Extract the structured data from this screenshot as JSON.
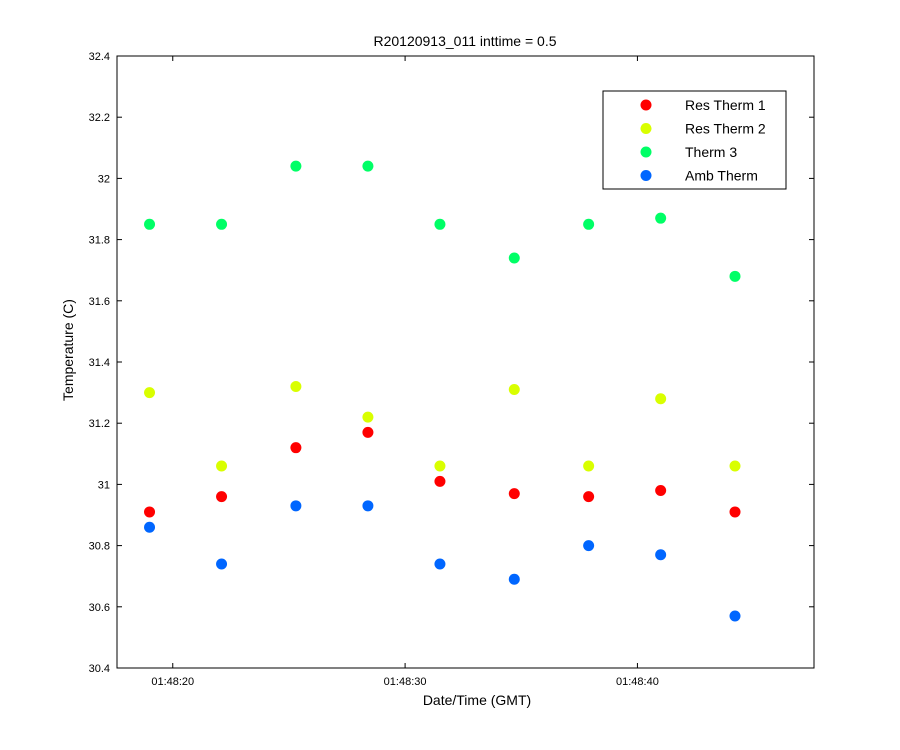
{
  "chart_data": {
    "type": "scatter",
    "title": "R20120913_011 inttime = 0.5",
    "xlabel": "Date/Time (GMT)",
    "ylabel": "Temperature (C)",
    "x_unit": "time",
    "x": [
      "01:48:19.0",
      "01:48:22.1",
      "01:48:25.3",
      "01:48:28.4",
      "01:48:31.5",
      "01:48:34.7",
      "01:48:37.9",
      "01:48:41.0",
      "01:48:44.2"
    ],
    "xlim": [
      "01:48:17.6",
      "01:48:47.6"
    ],
    "xticks": [
      "01:48:20",
      "01:48:30",
      "01:48:40"
    ],
    "ylim": [
      30.4,
      32.4
    ],
    "yticks": [
      "30.4",
      "30.6",
      "30.8",
      "31",
      "31.2",
      "31.4",
      "31.6",
      "31.8",
      "32",
      "32.2",
      "32.4"
    ],
    "grid": false,
    "legend_position": "top-right",
    "series": [
      {
        "name": "Res Therm 1",
        "color": "#ff0000",
        "values": [
          30.91,
          30.96,
          31.12,
          31.17,
          31.01,
          30.97,
          30.96,
          30.98,
          30.91
        ]
      },
      {
        "name": "Res Therm 2",
        "color": "#d9ff00",
        "values": [
          31.3,
          31.06,
          31.32,
          31.22,
          31.06,
          31.31,
          31.06,
          31.28,
          31.06
        ]
      },
      {
        "name": "Therm 3",
        "color": "#00ff66",
        "values": [
          31.85,
          31.85,
          32.04,
          32.04,
          31.85,
          31.74,
          31.85,
          31.87,
          31.68
        ]
      },
      {
        "name": "Amb Therm",
        "color": "#0066ff",
        "values": [
          30.86,
          30.74,
          30.93,
          30.93,
          30.74,
          30.69,
          30.8,
          30.77,
          30.57
        ]
      }
    ]
  }
}
